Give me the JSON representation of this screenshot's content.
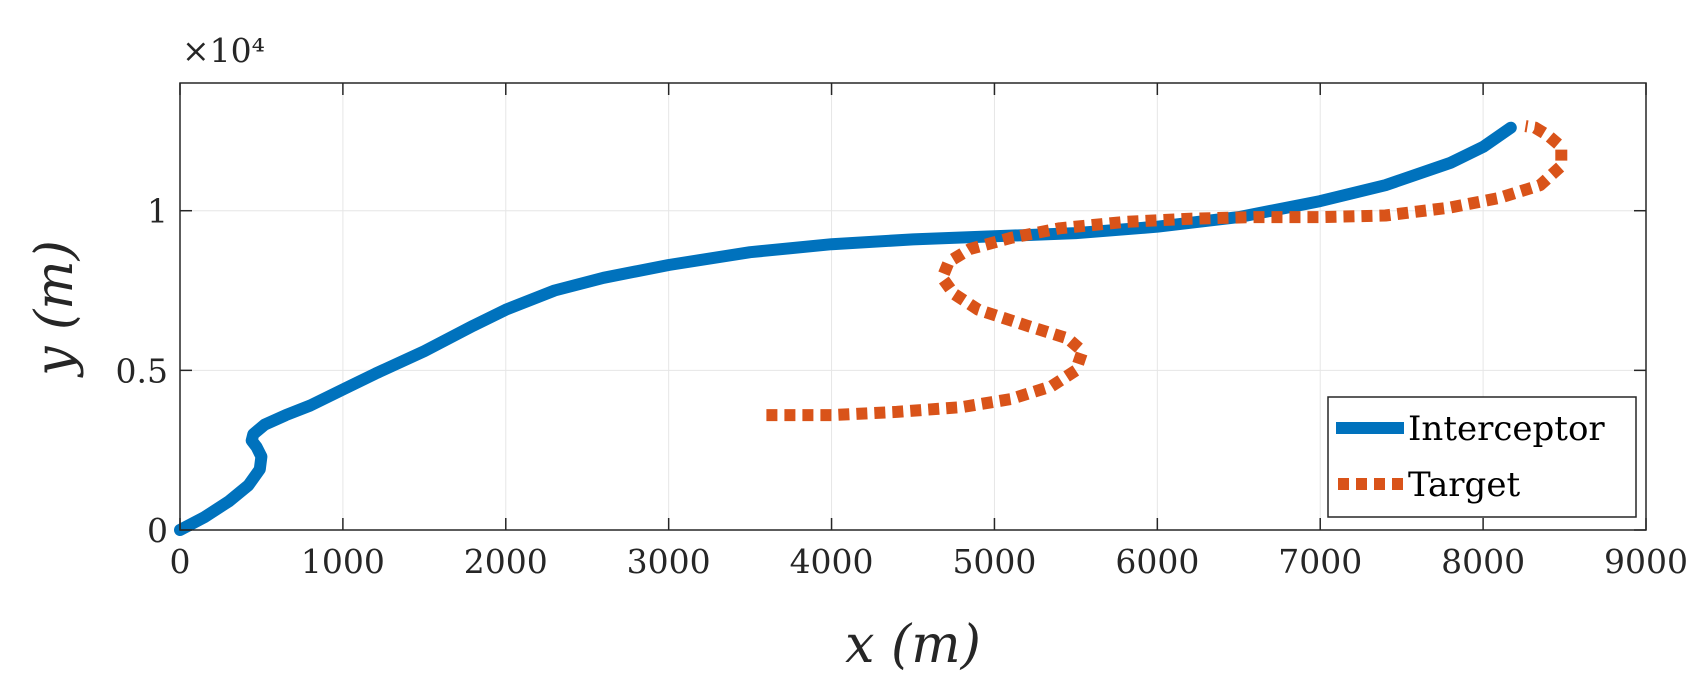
{
  "chart_data": {
    "type": "line",
    "title": "",
    "xlabel": "x (m)",
    "ylabel": "y (m)",
    "y_exponent_label": "×10⁴",
    "xlim": [
      0,
      9000
    ],
    "ylim": [
      0,
      14000
    ],
    "x_ticks": [
      0,
      1000,
      2000,
      3000,
      4000,
      5000,
      6000,
      7000,
      8000,
      9000
    ],
    "x_tick_labels": [
      "0",
      "1000",
      "2000",
      "3000",
      "4000",
      "5000",
      "6000",
      "7000",
      "8000",
      "9000"
    ],
    "y_ticks": [
      0,
      5000,
      10000
    ],
    "y_tick_labels": [
      "0",
      "0.5",
      "1"
    ],
    "grid": true,
    "legend_position": "bottom-right",
    "series": [
      {
        "name": "Interceptor",
        "color": "#0072BD",
        "style": "solid",
        "x": [
          0,
          150,
          300,
          420,
          490,
          500,
          470,
          440,
          450,
          520,
          650,
          800,
          1000,
          1200,
          1500,
          1800,
          2000,
          2300,
          2600,
          3000,
          3500,
          4000,
          4500,
          5000,
          5500,
          6000,
          6500,
          7000,
          7400,
          7800,
          8000,
          8170
        ],
        "y": [
          0,
          400,
          900,
          1400,
          1900,
          2300,
          2600,
          2800,
          3000,
          3300,
          3600,
          3900,
          4400,
          4900,
          5600,
          6400,
          6900,
          7500,
          7900,
          8300,
          8700,
          8950,
          9100,
          9200,
          9300,
          9500,
          9800,
          10300,
          10800,
          11500,
          12000,
          12600
        ]
      },
      {
        "name": "Target",
        "color": "#D95319",
        "style": "dotted",
        "x": [
          3600,
          4000,
          4400,
          4800,
          5100,
          5350,
          5500,
          5540,
          5450,
          5200,
          4900,
          4750,
          4680,
          4720,
          4850,
          5100,
          5400,
          5800,
          6200,
          6600,
          7000,
          7400,
          7800,
          8100,
          8350,
          8480,
          8480,
          8400,
          8320,
          8260
        ],
        "y": [
          3600,
          3600,
          3700,
          3850,
          4100,
          4500,
          5000,
          5600,
          6000,
          6400,
          6900,
          7400,
          7900,
          8400,
          8800,
          9150,
          9450,
          9650,
          9750,
          9800,
          9800,
          9850,
          10100,
          10400,
          10800,
          11400,
          12000,
          12350,
          12600,
          12650
        ]
      }
    ]
  }
}
